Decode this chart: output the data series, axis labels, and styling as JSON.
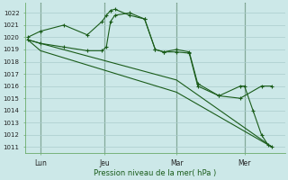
{
  "xlabel": "Pression niveau de la mer( hPa )",
  "bg_color": "#cce8e8",
  "grid_color": "#aacccc",
  "line_color": "#1a5c1a",
  "ylim_low": 1010.5,
  "ylim_high": 1022.8,
  "xlim_low": -0.05,
  "xlim_high": 6.05,
  "yticks": [
    1011,
    1012,
    1013,
    1014,
    1015,
    1016,
    1017,
    1018,
    1019,
    1020,
    1021,
    1022
  ],
  "xtick_pos": [
    0.3,
    1.8,
    3.5,
    5.1
  ],
  "xtick_labels": [
    "Lun",
    "Jeu",
    "Mar",
    "Mer"
  ],
  "vlines_x": [
    0.3,
    1.8,
    3.5,
    5.1
  ],
  "series1_x": [
    0.0,
    0.3,
    0.85,
    1.4,
    1.75,
    1.85,
    1.95,
    2.05,
    2.4,
    2.75,
    3.0,
    3.2,
    3.5,
    3.8,
    4.0,
    4.5,
    5.0,
    5.5,
    5.75
  ],
  "series1_y": [
    1020.0,
    1020.5,
    1021.0,
    1020.2,
    1021.3,
    1021.8,
    1022.2,
    1022.3,
    1021.8,
    1021.5,
    1019.0,
    1018.8,
    1019.0,
    1018.8,
    1016.2,
    1015.2,
    1015.0,
    1016.0,
    1016.0
  ],
  "series2_x": [
    0.0,
    0.3,
    0.85,
    1.4,
    1.75,
    1.85,
    1.95,
    2.05,
    2.4,
    2.75,
    3.0,
    3.2,
    3.5,
    3.8,
    4.0,
    4.5,
    5.0,
    5.1,
    5.3,
    5.5,
    5.65,
    5.75
  ],
  "series2_y": [
    1019.8,
    1019.5,
    1019.2,
    1018.9,
    1018.9,
    1019.2,
    1021.3,
    1021.8,
    1022.0,
    1021.5,
    1019.0,
    1018.8,
    1018.8,
    1018.7,
    1016.0,
    1015.2,
    1016.0,
    1016.0,
    1014.0,
    1012.0,
    1011.2,
    1011.0
  ],
  "series3_x": [
    0.0,
    0.3,
    3.5,
    5.75
  ],
  "series3_y": [
    1019.8,
    1019.5,
    1016.5,
    1011.0
  ],
  "series4_x": [
    0.0,
    0.3,
    3.5,
    5.75
  ],
  "series4_y": [
    1019.8,
    1018.9,
    1015.5,
    1011.0
  ]
}
